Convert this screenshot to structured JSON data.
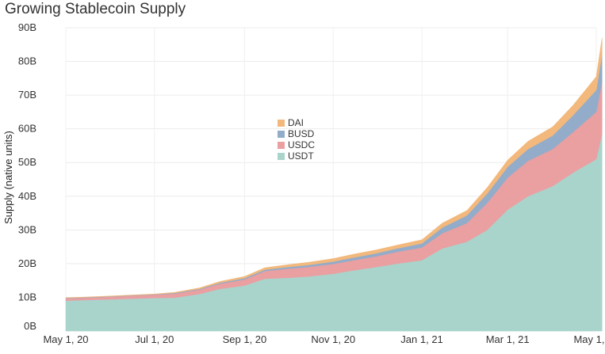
{
  "chart_data": {
    "type": "area",
    "stacked": true,
    "title": "Growing Stablecoin Supply",
    "xlabel": "",
    "ylabel": "Supply (native units)",
    "x_ticks": [
      "May 1, 20",
      "Jul 1, 20",
      "Sep 1, 20",
      "Nov 1, 20",
      "Jan 1, 21",
      "Mar 1, 21",
      "May 1, 21"
    ],
    "y_ticks": [
      "0B",
      "10B",
      "20B",
      "30B",
      "40B",
      "50B",
      "60B",
      "70B",
      "80B",
      "90B"
    ],
    "ylim": [
      0,
      90
    ],
    "y_unit": "B",
    "grid": true,
    "legend_position": "center",
    "x": [
      "2020-05-01",
      "2020-05-15",
      "2020-06-01",
      "2020-06-15",
      "2020-07-01",
      "2020-07-15",
      "2020-08-01",
      "2020-08-15",
      "2020-09-01",
      "2020-09-15",
      "2020-10-01",
      "2020-10-15",
      "2020-11-01",
      "2020-11-15",
      "2020-12-01",
      "2020-12-15",
      "2021-01-01",
      "2021-01-15",
      "2021-02-01",
      "2021-02-15",
      "2021-03-01",
      "2021-03-15",
      "2021-04-01",
      "2021-04-15",
      "2021-05-01",
      "2021-05-05"
    ],
    "series": [
      {
        "name": "USDT",
        "color": "#a9d4cc",
        "values": [
          9.0,
          9.2,
          9.4,
          9.6,
          9.8,
          9.9,
          11.0,
          12.5,
          13.5,
          15.5,
          15.8,
          16.2,
          17.0,
          18.0,
          19.0,
          20.0,
          21.0,
          24.5,
          26.5,
          30.0,
          36.0,
          40.0,
          43.0,
          47.0,
          51.0,
          58.5
        ]
      },
      {
        "name": "USDC",
        "color": "#ea9fa1",
        "values": [
          0.7,
          0.7,
          0.8,
          0.9,
          1.0,
          1.2,
          1.3,
          1.5,
          1.8,
          2.3,
          2.7,
          2.8,
          2.9,
          3.0,
          3.2,
          3.5,
          3.8,
          4.5,
          5.5,
          8.0,
          9.5,
          10.5,
          11.0,
          12.0,
          14.0,
          15.5
        ]
      },
      {
        "name": "BUSD",
        "color": "#93acc9",
        "values": [
          0.1,
          0.1,
          0.1,
          0.1,
          0.1,
          0.2,
          0.2,
          0.3,
          0.4,
          0.4,
          0.5,
          0.6,
          0.7,
          0.8,
          0.9,
          1.0,
          1.2,
          1.7,
          2.3,
          2.8,
          3.2,
          3.5,
          4.0,
          5.0,
          6.5,
          8.0
        ]
      },
      {
        "name": "DAI",
        "color": "#f2b87c",
        "values": [
          0.1,
          0.1,
          0.1,
          0.1,
          0.1,
          0.2,
          0.3,
          0.4,
          0.5,
          0.6,
          0.7,
          0.8,
          0.9,
          1.0,
          1.0,
          1.0,
          1.1,
          1.3,
          1.5,
          1.8,
          2.0,
          2.3,
          2.6,
          3.0,
          4.0,
          5.0
        ]
      }
    ]
  }
}
